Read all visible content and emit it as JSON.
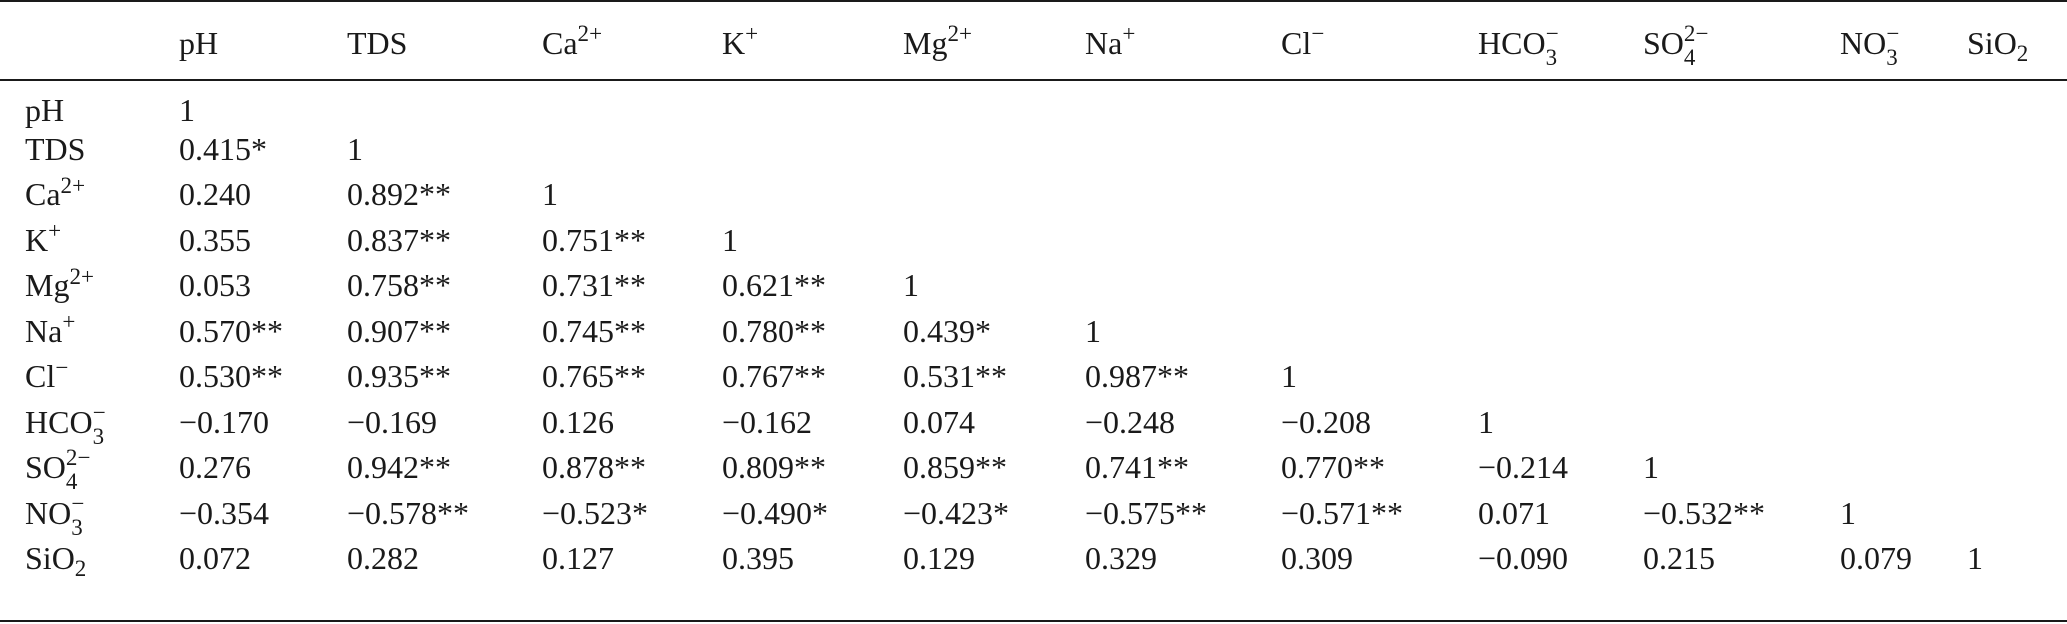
{
  "table": {
    "columns": [
      "",
      "pH",
      "TDS",
      "Ca2+",
      "K+",
      "Mg2+",
      "Na+",
      "Cl−",
      "HCO3−",
      "SO42−",
      "NO3−",
      "SiO2"
    ],
    "column_html": [
      "",
      "pH",
      "TDS",
      "Ca<sup>2+</sup>",
      "K<sup>+</sup>",
      "Mg<sup>2+</sup>",
      "Na<sup>+</sup>",
      "Cl<sup>−</sup>",
      "HCO<span class=\"ss\"><sup>−</sup><sub>3</sub></span>",
      "SO<span class=\"ss\"><sup>2−</sup><sub>4</sub></span>",
      "NO<span class=\"ss\"><sup>−</sup><sub>3</sub></span>",
      "SiO<sub>2</sub>"
    ],
    "rows": [
      {
        "label": "pH",
        "values": [
          "1",
          "",
          "",
          "",
          "",
          "",
          "",
          "",
          "",
          "",
          ""
        ]
      },
      {
        "label": "TDS",
        "values": [
          "0.415*",
          "1",
          "",
          "",
          "",
          "",
          "",
          "",
          "",
          "",
          ""
        ]
      },
      {
        "label": "Ca2+",
        "values": [
          "0.240",
          "0.892**",
          "1",
          "",
          "",
          "",
          "",
          "",
          "",
          "",
          ""
        ]
      },
      {
        "label": "K+",
        "values": [
          "0.355",
          "0.837**",
          "0.751**",
          "1",
          "",
          "",
          "",
          "",
          "",
          "",
          ""
        ]
      },
      {
        "label": "Mg2+",
        "values": [
          "0.053",
          "0.758**",
          "0.731**",
          "0.621**",
          "1",
          "",
          "",
          "",
          "",
          "",
          ""
        ]
      },
      {
        "label": "Na+",
        "values": [
          "0.570**",
          "0.907**",
          "0.745**",
          "0.780**",
          "0.439*",
          "1",
          "",
          "",
          "",
          "",
          ""
        ]
      },
      {
        "label": "Cl−",
        "values": [
          "0.530**",
          "0.935**",
          "0.765**",
          "0.767**",
          "0.531**",
          "0.987**",
          "1",
          "",
          "",
          "",
          ""
        ]
      },
      {
        "label": "HCO3−",
        "values": [
          "−0.170",
          "−0.169",
          "0.126",
          "−0.162",
          "0.074",
          "−0.248",
          "−0.208",
          "1",
          "",
          "",
          ""
        ]
      },
      {
        "label": "SO42−",
        "values": [
          "0.276",
          "0.942**",
          "0.878**",
          "0.809**",
          "0.859**",
          "0.741**",
          "0.770**",
          "−0.214",
          "1",
          "",
          ""
        ]
      },
      {
        "label": "NO3−",
        "values": [
          "−0.354",
          "−0.578**",
          "−0.523*",
          "−0.490*",
          "−0.423*",
          "−0.575**",
          "−0.571**",
          "0.071",
          "−0.532**",
          "1",
          ""
        ]
      },
      {
        "label": "SiO2",
        "values": [
          "0.072",
          "0.282",
          "0.127",
          "0.395",
          "0.129",
          "0.329",
          "0.309",
          "−0.090",
          "0.215",
          "0.079",
          "1"
        ]
      }
    ],
    "row_label_html": [
      "pH",
      "TDS",
      "Ca<sup>2+</sup>",
      "K<sup>+</sup>",
      "Mg<sup>2+</sup>",
      "Na<sup>+</sup>",
      "Cl<sup>−</sup>",
      "HCO<span class=\"ss\"><sup>−</sup><sub>3</sub></span>",
      "SO<span class=\"ss\"><sup>2−</sup><sub>4</sub></span>",
      "NO<span class=\"ss\"><sup>−</sup><sub>3</sub></span>",
      "SiO<sub>2</sub>"
    ]
  }
}
